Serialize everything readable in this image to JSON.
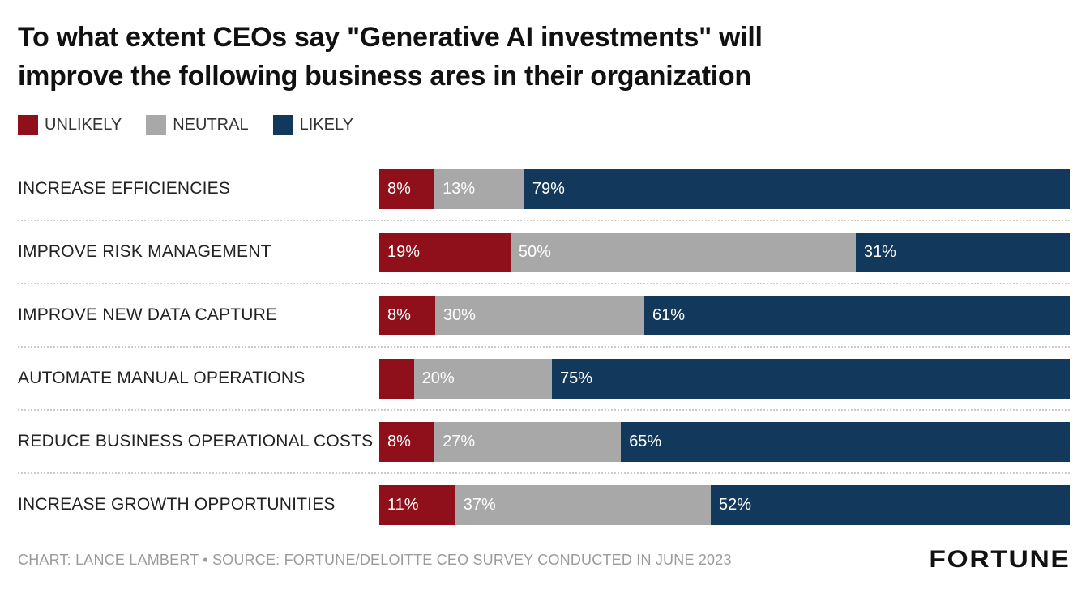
{
  "title": {
    "line1": "To what extent CEOs say \"Generative AI investments\" will",
    "line2": "improve the following business ares in their organization"
  },
  "legend": [
    {
      "label": "UNLIKELY",
      "color": "#8f0f1b"
    },
    {
      "label": "NEUTRAL",
      "color": "#a8a8a8"
    },
    {
      "label": "LIKELY",
      "color": "#12395b"
    }
  ],
  "chart_data": {
    "type": "bar",
    "stacked": true,
    "orientation": "horizontal",
    "categories": [
      "INCREASE EFFICIENCIES",
      "IMPROVE RISK MANAGEMENT",
      "IMPROVE NEW DATA CAPTURE",
      "AUTOMATE MANUAL OPERATIONS",
      "REDUCE BUSINESS OPERATIONAL COSTS",
      "INCREASE GROWTH OPPORTUNITIES"
    ],
    "series": [
      {
        "name": "UNLIKELY",
        "color": "#8f0f1b",
        "values": [
          8,
          19,
          8,
          5,
          8,
          11
        ],
        "labels": [
          "8%",
          "19%",
          "8%",
          "",
          "8%",
          "11%"
        ]
      },
      {
        "name": "NEUTRAL",
        "color": "#a8a8a8",
        "values": [
          13,
          50,
          30,
          20,
          27,
          37
        ],
        "labels": [
          "13%",
          "50%",
          "30%",
          "20%",
          "27%",
          "37%"
        ]
      },
      {
        "name": "LIKELY",
        "color": "#12395b",
        "values": [
          79,
          31,
          61,
          75,
          65,
          52
        ],
        "labels": [
          "79%",
          "31%",
          "61%",
          "75%",
          "65%",
          "52%"
        ]
      }
    ],
    "xlim": [
      0,
      100
    ],
    "grid": false,
    "legend_position": "top-left"
  },
  "footer": {
    "credit": "CHART: LANCE LAMBERT • SOURCE: FORTUNE/DELOITTE CEO SURVEY CONDUCTED IN JUNE 2023",
    "logo": "FORTUNE"
  }
}
